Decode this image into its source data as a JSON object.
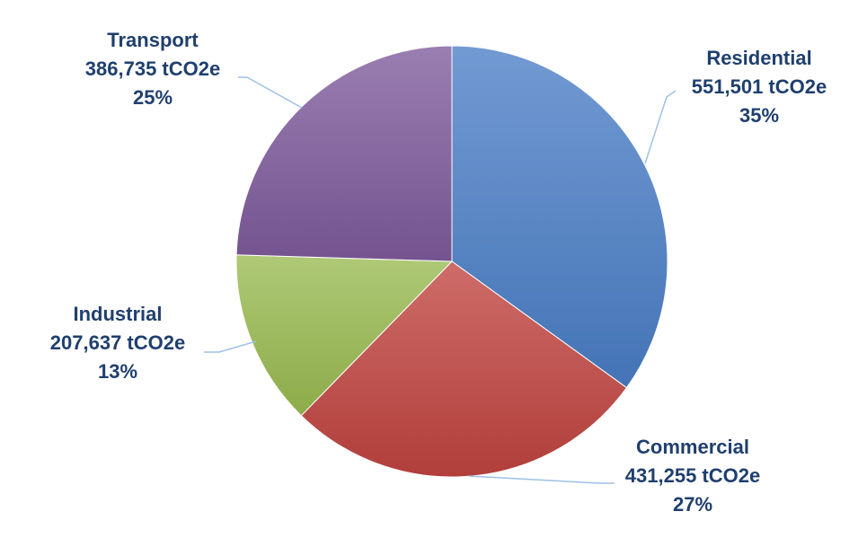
{
  "chart_data": {
    "type": "pie",
    "unit": "tCO2e",
    "slices": [
      {
        "label": "Residential",
        "value": 551501,
        "value_text": "551,501 tCO2e",
        "percent": 35,
        "percent_text": "35%",
        "color": "#4a7ec6"
      },
      {
        "label": "Commercial",
        "value": 431255,
        "value_text": "431,255 tCO2e",
        "percent": 27,
        "percent_text": "27%",
        "color": "#c0433f"
      },
      {
        "label": "Industrial",
        "value": 207637,
        "value_text": "207,637 tCO2e",
        "percent": 13,
        "percent_text": "13%",
        "color": "#98ba4f"
      },
      {
        "label": "Transport",
        "value": 386735,
        "value_text": "386,735 tCO2e",
        "percent": 25,
        "percent_text": "25%",
        "color": "#7e5a9b"
      }
    ],
    "start_angle": "12 o'clock",
    "direction": "clockwise",
    "label_color": "#1f3f6e",
    "leader_color": "#9ec1e6",
    "legend": "none"
  }
}
